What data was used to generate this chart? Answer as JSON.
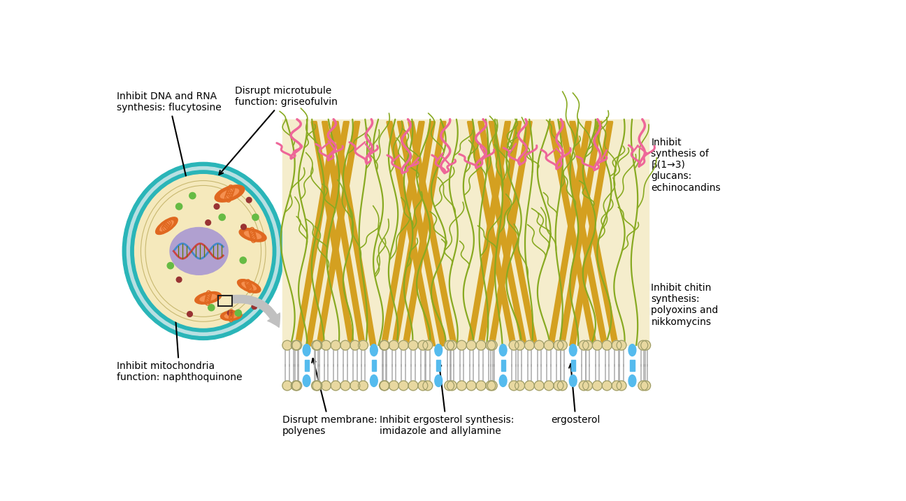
{
  "bg_color": "#ffffff",
  "cell_wall_color": "#2ab5b8",
  "cell_bg_color": "#c5e8e8",
  "cytoplasm_color": "#f5e9bc",
  "nucleus_color": "#b0a0d0",
  "mito_outer_color": "#e06820",
  "mito_inner_color": "#f59050",
  "wall_bg_color": "#f5edcc",
  "bead_color": "#e8d8a0",
  "bead_outline": "#999966",
  "ergosterol_color": "#55bbee",
  "chitin_color": "#d4a020",
  "glucan_color": "#88aa22",
  "pink_color": "#ee6699",
  "green_dot_color": "#66bb44",
  "red_dot_color": "#993333",
  "labels": {
    "dna_rna": "Inhibit DNA and RNA\nsynthesis: flucytosine",
    "microtubule": "Disrupt microtubule\nfunction: griseofulvin",
    "mitochondria": "Inhibit mitochondria\nfunction: naphthoquinone",
    "membrane": "Disrupt membrane:\npolyenes",
    "ergosterol_synth": "Inhibit ergosterol synthesis:\nimidazole and allylamine",
    "ergosterol": "ergosterol",
    "glucan": "Inhibit\nsynthesis of\nβ(1→3)\nglucans:\nechinocandins",
    "chitin": "Inhibit chitin\nsynthesis:\npolyoxins and\nnikkomycins"
  }
}
